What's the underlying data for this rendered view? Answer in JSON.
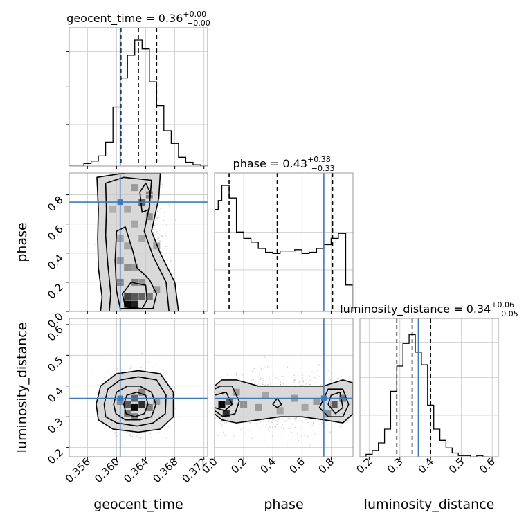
{
  "colors": {
    "truth": "#3d7ab8",
    "contour": "#000000",
    "grid": "#c8c8c8",
    "frame": "#9a9a9a",
    "hist": "#000000"
  },
  "chart_data": {
    "type": "corner",
    "parameters": [
      "geocent_time",
      "phase",
      "luminosity_distance"
    ],
    "axis_labels": [
      "geocent_time",
      "phase",
      "luminosity_distance"
    ],
    "ranges": {
      "geocent_time": [
        0.3535,
        0.3725
      ],
      "phase": [
        0.0,
        0.95
      ],
      "luminosity_distance": [
        0.17,
        0.62
      ]
    },
    "ticks": {
      "geocent_time": [
        0.356,
        0.36,
        0.364,
        0.368,
        0.372
      ],
      "phase": [
        0.0,
        0.2,
        0.4,
        0.6,
        0.8
      ],
      "luminosity_distance": [
        0.2,
        0.3,
        0.4,
        0.5,
        0.6
      ]
    },
    "tick_labels": {
      "geocent_time": [
        "0.356",
        "0.360",
        "0.364",
        "0.368",
        "0.372"
      ],
      "phase": [
        "0.0",
        "0.2",
        "0.4",
        "0.6",
        "0.8"
      ],
      "phase_y": [
        "0.0",
        "0.2",
        "0.4",
        "0.6",
        "0.8"
      ],
      "luminosity_distance": [
        "0.2",
        "0.3",
        "0.4",
        "0.5",
        "0.6"
      ]
    },
    "truths": {
      "geocent_time": 0.3605,
      "phase": 0.75,
      "luminosity_distance": 0.36
    },
    "summaries": {
      "geocent_time": {
        "median": "0.36",
        "plus": "+0.00",
        "minus": "−0.00",
        "title_prefix": "geocent_time = ",
        "quantiles": [
          0.3606,
          0.363,
          0.3655
        ]
      },
      "phase": {
        "median": "0.43",
        "plus": "+0.38",
        "minus": "−0.33",
        "title_prefix": "phase = ",
        "quantiles": [
          0.1,
          0.43,
          0.81
        ]
      },
      "luminosity_distance": {
        "median": "0.34",
        "plus": "+0.06",
        "minus": "−0.05",
        "title_prefix": "luminosity_distance = ",
        "quantiles": [
          0.29,
          0.34,
          0.4
        ]
      }
    },
    "hist_geocent_time": {
      "bin_edges": [
        0.3535,
        0.3545,
        0.3555,
        0.3565,
        0.3575,
        0.3585,
        0.3595,
        0.3605,
        0.3615,
        0.3625,
        0.3635,
        0.3645,
        0.3655,
        0.3665,
        0.3675,
        0.3685,
        0.3695,
        0.3705,
        0.3715,
        0.3725
      ],
      "counts": [
        0.0,
        0.0,
        0.02,
        0.04,
        0.08,
        0.19,
        0.47,
        0.7,
        0.88,
        1.0,
        0.93,
        0.67,
        0.48,
        0.28,
        0.18,
        0.07,
        0.03,
        0.01,
        0.0
      ]
    },
    "hist_phase": {
      "bin_edges": [
        0.0,
        0.025,
        0.05,
        0.1,
        0.15,
        0.2,
        0.25,
        0.3,
        0.35,
        0.4,
        0.45,
        0.5,
        0.55,
        0.6,
        0.65,
        0.7,
        0.75,
        0.8,
        0.85,
        0.9,
        0.95
      ],
      "counts": [
        0.81,
        0.88,
        1.0,
        0.9,
        0.63,
        0.58,
        0.55,
        0.5,
        0.47,
        0.46,
        0.48,
        0.48,
        0.49,
        0.46,
        0.47,
        0.5,
        0.53,
        0.58,
        0.62,
        0.21
      ]
    },
    "hist_luminosity_distance": {
      "bin_edges": [
        0.17,
        0.19,
        0.21,
        0.23,
        0.25,
        0.27,
        0.29,
        0.31,
        0.33,
        0.35,
        0.37,
        0.39,
        0.41,
        0.43,
        0.45,
        0.47,
        0.49,
        0.51,
        0.53,
        0.55,
        0.57,
        0.59
      ],
      "counts": [
        0.0,
        0.02,
        0.05,
        0.11,
        0.22,
        0.52,
        0.72,
        0.9,
        0.97,
        0.83,
        0.73,
        0.41,
        0.22,
        0.13,
        0.07,
        0.03,
        0.01,
        0.01,
        0.0,
        0.01,
        0.0
      ]
    },
    "scatter_phase_vs_geocent_time": {
      "contours": [
        [
          [
            0.3578,
            0.0
          ],
          [
            0.358,
            0.1
          ],
          [
            0.3575,
            0.3
          ],
          [
            0.3574,
            0.5
          ],
          [
            0.3575,
            0.7
          ],
          [
            0.3573,
            0.92
          ],
          [
            0.3612,
            0.95
          ],
          [
            0.366,
            0.95
          ],
          [
            0.3658,
            0.78
          ],
          [
            0.3648,
            0.55
          ],
          [
            0.366,
            0.4
          ],
          [
            0.368,
            0.2
          ],
          [
            0.3685,
            0.0
          ]
        ],
        [
          [
            0.359,
            0.0
          ],
          [
            0.3592,
            0.12
          ],
          [
            0.3588,
            0.32
          ],
          [
            0.3585,
            0.52
          ],
          [
            0.3586,
            0.7
          ],
          [
            0.3585,
            0.88
          ],
          [
            0.361,
            0.92
          ],
          [
            0.3648,
            0.9
          ],
          [
            0.3645,
            0.72
          ],
          [
            0.3638,
            0.55
          ],
          [
            0.365,
            0.38
          ],
          [
            0.3668,
            0.2
          ],
          [
            0.3672,
            0.0
          ]
        ],
        [
          [
            0.3605,
            0.02
          ],
          [
            0.36,
            0.14
          ],
          [
            0.3598,
            0.35
          ],
          [
            0.36,
            0.55
          ],
          [
            0.3612,
            0.58
          ],
          [
            0.3622,
            0.42
          ],
          [
            0.3628,
            0.3
          ],
          [
            0.3645,
            0.22
          ],
          [
            0.3655,
            0.12
          ],
          [
            0.365,
            0.02
          ]
        ],
        [
          [
            0.3612,
            0.03
          ],
          [
            0.3608,
            0.12
          ],
          [
            0.362,
            0.2
          ],
          [
            0.364,
            0.18
          ],
          [
            0.3642,
            0.08
          ],
          [
            0.3635,
            0.02
          ]
        ],
        [
          [
            0.3635,
            0.68
          ],
          [
            0.3632,
            0.82
          ],
          [
            0.364,
            0.88
          ],
          [
            0.3646,
            0.82
          ],
          [
            0.3645,
            0.7
          ]
        ]
      ],
      "density_cells": [
        [
          0.3615,
          0.05,
          0.95
        ],
        [
          0.3625,
          0.05,
          0.85
        ],
        [
          0.3615,
          0.1,
          0.7
        ],
        [
          0.3625,
          0.1,
          0.6
        ],
        [
          0.3635,
          0.1,
          0.55
        ],
        [
          0.3645,
          0.1,
          0.45
        ],
        [
          0.3605,
          0.2,
          0.4
        ],
        [
          0.3625,
          0.2,
          0.4
        ],
        [
          0.3635,
          0.2,
          0.35
        ],
        [
          0.3655,
          0.15,
          0.3
        ],
        [
          0.3605,
          0.35,
          0.3
        ],
        [
          0.3615,
          0.3,
          0.35
        ],
        [
          0.3625,
          0.3,
          0.3
        ],
        [
          0.3605,
          0.5,
          0.25
        ],
        [
          0.3615,
          0.45,
          0.25
        ],
        [
          0.3625,
          0.6,
          0.25
        ],
        [
          0.3635,
          0.75,
          0.55
        ],
        [
          0.3645,
          0.8,
          0.4
        ],
        [
          0.3625,
          0.85,
          0.3
        ],
        [
          0.3645,
          0.65,
          0.35
        ],
        [
          0.3655,
          0.45,
          0.25
        ],
        [
          0.3595,
          0.7,
          0.2
        ],
        [
          0.3635,
          0.5,
          0.25
        ],
        [
          0.3615,
          0.7,
          0.25
        ]
      ]
    },
    "scatter_luminosity_distance_vs_geocent_time": {
      "contours": [
        [
          [
            0.3572,
            0.34
          ],
          [
            0.3578,
            0.4
          ],
          [
            0.36,
            0.44
          ],
          [
            0.363,
            0.45
          ],
          [
            0.366,
            0.44
          ],
          [
            0.3678,
            0.38
          ],
          [
            0.3678,
            0.3
          ],
          [
            0.366,
            0.26
          ],
          [
            0.363,
            0.25
          ],
          [
            0.3595,
            0.26
          ],
          [
            0.3575,
            0.29
          ]
        ],
        [
          [
            0.3583,
            0.34
          ],
          [
            0.3588,
            0.39
          ],
          [
            0.3605,
            0.42
          ],
          [
            0.363,
            0.43
          ],
          [
            0.3655,
            0.42
          ],
          [
            0.3668,
            0.37
          ],
          [
            0.3667,
            0.31
          ],
          [
            0.365,
            0.28
          ],
          [
            0.3628,
            0.27
          ],
          [
            0.36,
            0.28
          ],
          [
            0.3585,
            0.3
          ]
        ],
        [
          [
            0.3596,
            0.34
          ],
          [
            0.36,
            0.38
          ],
          [
            0.3615,
            0.4
          ],
          [
            0.3632,
            0.4
          ],
          [
            0.3648,
            0.38
          ],
          [
            0.3654,
            0.34
          ],
          [
            0.3648,
            0.3
          ],
          [
            0.3632,
            0.29
          ],
          [
            0.3612,
            0.29
          ],
          [
            0.3599,
            0.31
          ]
        ],
        [
          [
            0.361,
            0.34
          ],
          [
            0.3614,
            0.37
          ],
          [
            0.3628,
            0.38
          ],
          [
            0.364,
            0.37
          ],
          [
            0.3643,
            0.34
          ],
          [
            0.3638,
            0.31
          ],
          [
            0.3625,
            0.3
          ],
          [
            0.3613,
            0.31
          ]
        ]
      ],
      "density_cells": [
        [
          0.3625,
          0.33,
          0.95
        ],
        [
          0.3635,
          0.34,
          0.8
        ],
        [
          0.3615,
          0.34,
          0.6
        ],
        [
          0.3625,
          0.36,
          0.55
        ],
        [
          0.3645,
          0.33,
          0.45
        ],
        [
          0.3635,
          0.38,
          0.4
        ],
        [
          0.3615,
          0.31,
          0.45
        ],
        [
          0.3605,
          0.35,
          0.35
        ],
        [
          0.3655,
          0.35,
          0.3
        ],
        [
          0.3625,
          0.3,
          0.4
        ]
      ]
    },
    "scatter_luminosity_distance_vs_phase": {
      "contours": [
        [
          [
            0.0,
            0.31
          ],
          [
            0.05,
            0.29
          ],
          [
            0.15,
            0.28
          ],
          [
            0.3,
            0.29
          ],
          [
            0.45,
            0.3
          ],
          [
            0.6,
            0.3
          ],
          [
            0.75,
            0.29
          ],
          [
            0.88,
            0.28
          ],
          [
            0.95,
            0.31
          ],
          [
            0.95,
            0.41
          ],
          [
            0.88,
            0.42
          ],
          [
            0.75,
            0.4
          ],
          [
            0.6,
            0.4
          ],
          [
            0.45,
            0.4
          ],
          [
            0.3,
            0.4
          ],
          [
            0.15,
            0.42
          ],
          [
            0.05,
            0.42
          ],
          [
            0.0,
            0.4
          ]
        ],
        [
          [
            0.0,
            0.32
          ],
          [
            0.06,
            0.3
          ],
          [
            0.14,
            0.31
          ],
          [
            0.17,
            0.35
          ],
          [
            0.12,
            0.4
          ],
          [
            0.04,
            0.4
          ],
          [
            0.0,
            0.39
          ]
        ],
        [
          [
            0.0,
            0.33
          ],
          [
            0.07,
            0.32
          ],
          [
            0.12,
            0.34
          ],
          [
            0.08,
            0.38
          ],
          [
            0.0,
            0.37
          ]
        ],
        [
          [
            0.72,
            0.33
          ],
          [
            0.78,
            0.3
          ],
          [
            0.88,
            0.3
          ],
          [
            0.92,
            0.34
          ],
          [
            0.88,
            0.39
          ],
          [
            0.78,
            0.39
          ]
        ],
        [
          [
            0.78,
            0.34
          ],
          [
            0.83,
            0.31
          ],
          [
            0.88,
            0.33
          ],
          [
            0.86,
            0.38
          ],
          [
            0.8,
            0.37
          ]
        ],
        [
          [
            0.4,
            0.34
          ],
          [
            0.43,
            0.33
          ],
          [
            0.46,
            0.34
          ],
          [
            0.43,
            0.36
          ]
        ]
      ],
      "density_cells": [
        [
          0.05,
          0.34,
          0.95
        ],
        [
          0.08,
          0.31,
          0.8
        ],
        [
          0.1,
          0.35,
          0.55
        ],
        [
          0.2,
          0.34,
          0.35
        ],
        [
          0.3,
          0.33,
          0.3
        ],
        [
          0.55,
          0.36,
          0.3
        ],
        [
          0.45,
          0.32,
          0.25
        ],
        [
          0.82,
          0.34,
          0.6
        ],
        [
          0.88,
          0.36,
          0.45
        ],
        [
          0.78,
          0.31,
          0.35
        ],
        [
          0.7,
          0.35,
          0.3
        ],
        [
          0.62,
          0.33,
          0.25
        ],
        [
          0.35,
          0.37,
          0.25
        ],
        [
          0.15,
          0.38,
          0.3
        ]
      ]
    }
  }
}
